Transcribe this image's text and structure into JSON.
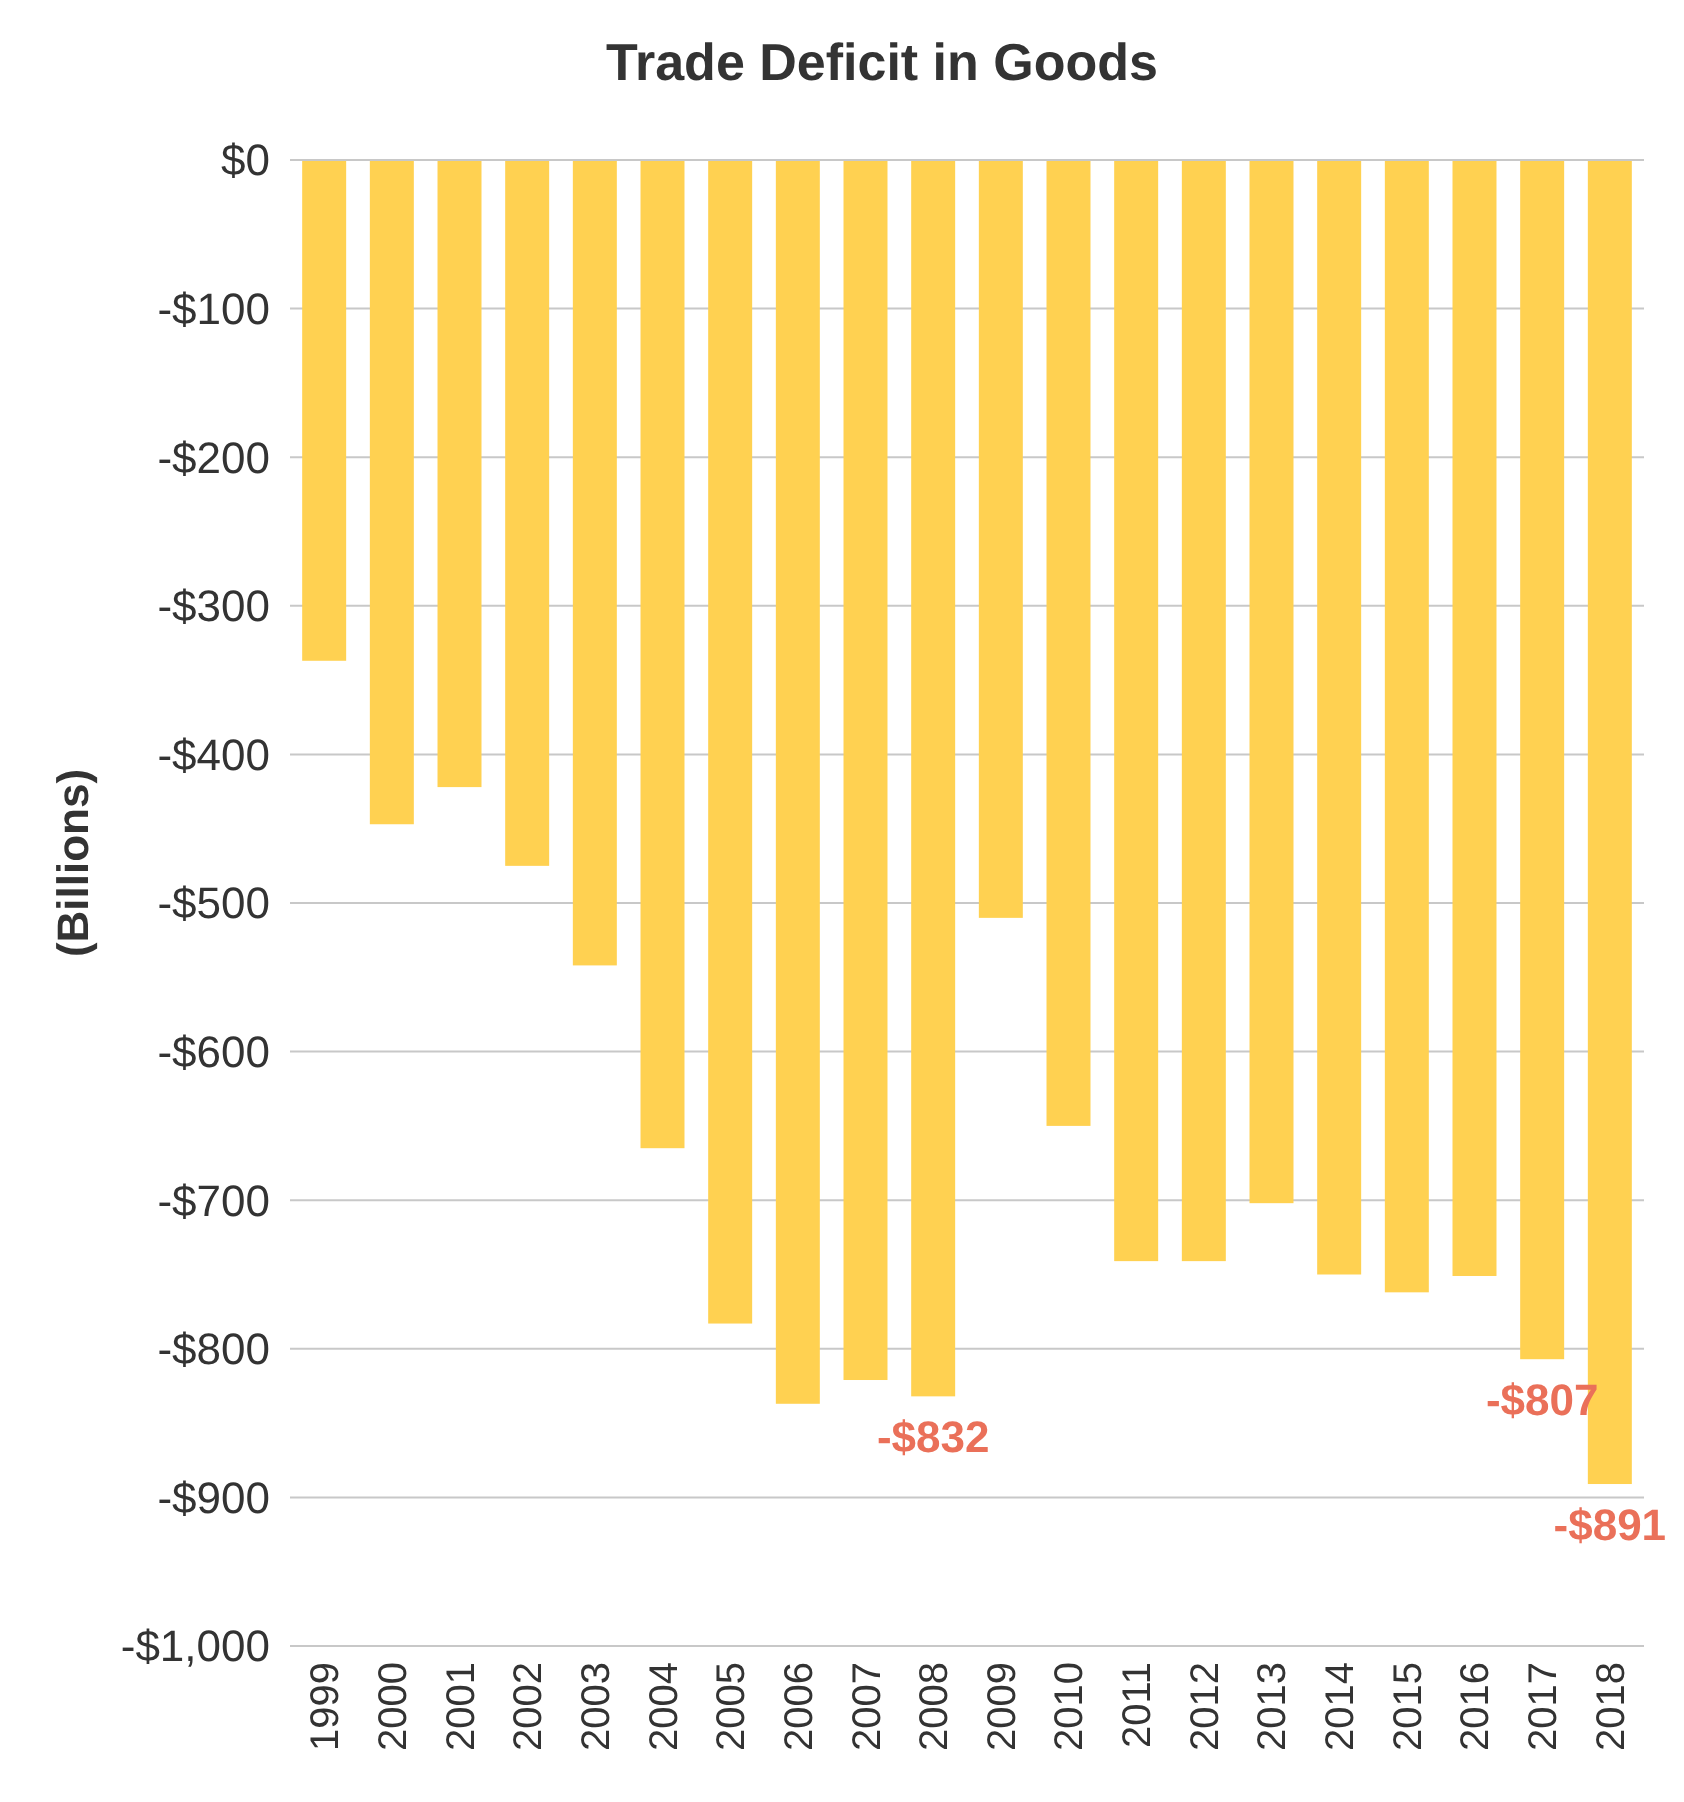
{
  "chart_data": {
    "type": "bar",
    "title": "Trade Deficit in Goods",
    "ylabel": "(Billions)",
    "categories": [
      "1999",
      "2000",
      "2001",
      "2002",
      "2003",
      "2004",
      "2005",
      "2006",
      "2007",
      "2008",
      "2009",
      "2010",
      "2011",
      "2012",
      "2013",
      "2014",
      "2015",
      "2016",
      "2017",
      "2018"
    ],
    "values": [
      -337,
      -447,
      -422,
      -475,
      -542,
      -665,
      -783,
      -837,
      -821,
      -832,
      -510,
      -650,
      -741,
      -741,
      -702,
      -750,
      -762,
      -751,
      -807,
      -891
    ],
    "value_labels": [
      null,
      null,
      null,
      null,
      null,
      null,
      null,
      null,
      null,
      "-$832",
      null,
      null,
      null,
      null,
      null,
      null,
      null,
      null,
      "-$807",
      "-$891"
    ],
    "color": "#ffd151",
    "ylim": [
      -1000,
      0
    ],
    "yticks": [
      {
        "value": 0,
        "label": "$0"
      },
      {
        "value": -100,
        "label": "-$100"
      },
      {
        "value": -200,
        "label": "-$200"
      },
      {
        "value": -300,
        "label": "-$300"
      },
      {
        "value": -400,
        "label": "-$400"
      },
      {
        "value": -500,
        "label": "-$500"
      },
      {
        "value": -600,
        "label": "-$600"
      },
      {
        "value": -700,
        "label": "-$700"
      },
      {
        "value": -800,
        "label": "-$800"
      },
      {
        "value": -900,
        "label": "-$900"
      },
      {
        "value": -1000,
        "label": "-$1,000"
      }
    ],
    "grid": "y"
  }
}
